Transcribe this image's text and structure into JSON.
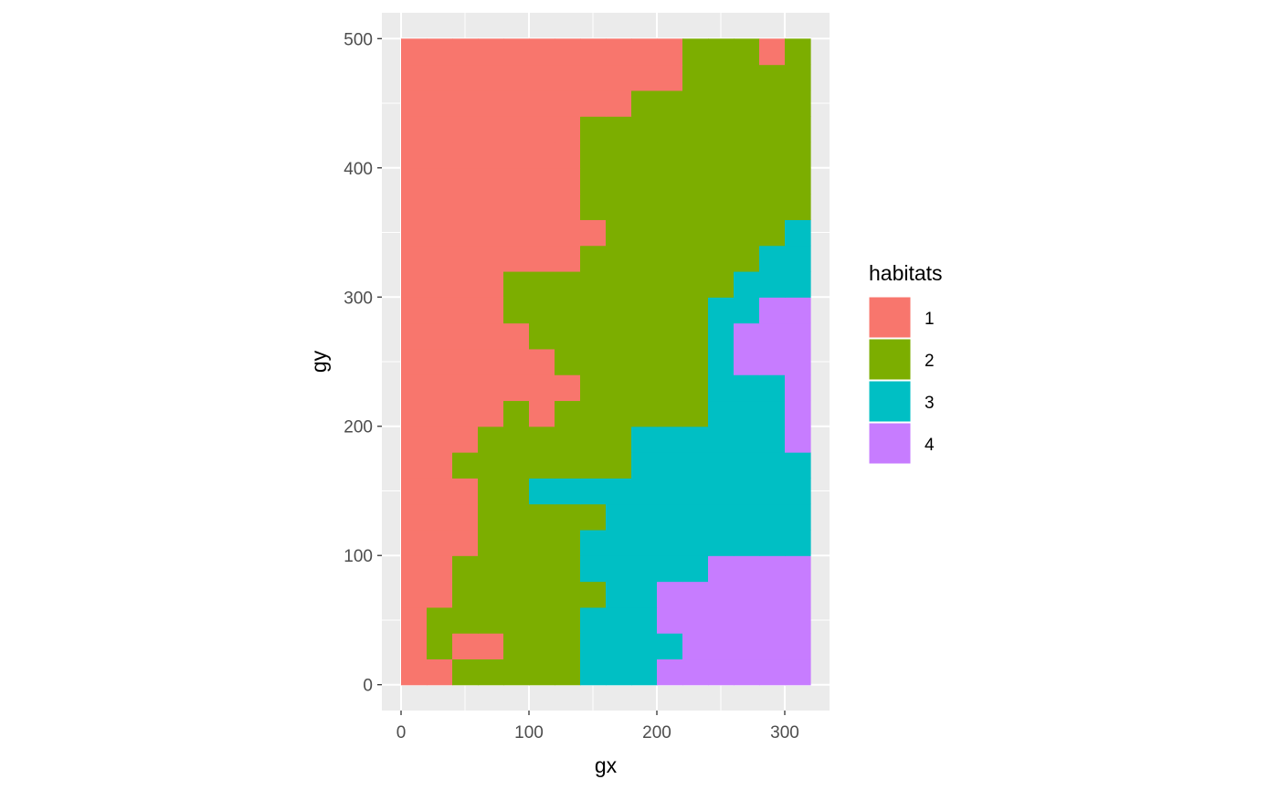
{
  "chart_data": {
    "type": "heatmap",
    "title": "",
    "xlabel": "gx",
    "ylabel": "gy",
    "xlim": [
      -15,
      335
    ],
    "ylim": [
      -20,
      520
    ],
    "x_ticks": [
      0,
      100,
      200,
      300
    ],
    "y_ticks": [
      0,
      100,
      200,
      300,
      400,
      500
    ],
    "x_tick_labels": [
      "0",
      "100",
      "200",
      "300"
    ],
    "y_tick_labels": [
      "0",
      "100",
      "200",
      "300",
      "400",
      "500"
    ],
    "grid": true,
    "cell_width": 20,
    "cell_height": 20,
    "x_start": 0,
    "y_start": 0,
    "legend": {
      "title": "habitats",
      "position": "right",
      "entries": [
        {
          "label": "1",
          "color": "#F8766D"
        },
        {
          "label": "2",
          "color": "#7CAE00"
        },
        {
          "label": "3",
          "color": "#00BFC4"
        },
        {
          "label": "4",
          "color": "#C77CFF"
        }
      ]
    },
    "rows_bottom_to_top": [
      "1122222333444444",
      "1211222333344444",
      "1222222333444444",
      "1122222233444444",
      "1122222333334444",
      "1112222333333333",
      "1112222233333333",
      "1112233333333333",
      "1122222223333333",
      "1112222223333334",
      "1111212222223334",
      "1111111222223334",
      "1111112222223444",
      "1111122222223444",
      "1111222222223344",
      "1111222222222333",
      "1111111222222233",
      "1111111122222223",
      "1111111222222222",
      "1111111222222222",
      "1111111222222222",
      "1111111222222222",
      "1111111112222222",
      "1111111111122222",
      "1111111111122212"
    ]
  }
}
